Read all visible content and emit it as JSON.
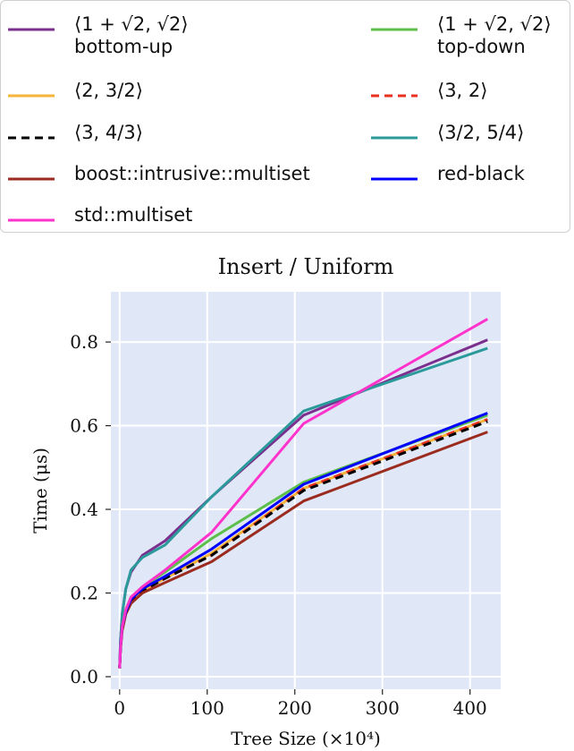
{
  "legend": {
    "items": [
      {
        "label": "⟨1 + √2, √2⟩",
        "sub": "bottom-up",
        "color": "#7b2f8e",
        "dash": "solid"
      },
      {
        "label": "⟨1 + √2, √2⟩",
        "sub": "top-down",
        "color": "#5cbf4a",
        "dash": "solid"
      },
      {
        "label": "⟨2, 3/2⟩",
        "sub": "",
        "color": "#f6b53a",
        "dash": "solid"
      },
      {
        "label": "⟨3, 2⟩",
        "sub": "",
        "color": "#e8321f",
        "dash": "dashed"
      },
      {
        "label": "⟨3, 4/3⟩",
        "sub": "",
        "color": "#000000",
        "dash": "dashed"
      },
      {
        "label": "⟨3/2, 5/4⟩",
        "sub": "",
        "color": "#2b9a9a",
        "dash": "solid"
      },
      {
        "label": "boost::intrusive::multiset",
        "sub": "",
        "color": "#9b2b1e",
        "dash": "solid"
      },
      {
        "label": "red-black",
        "sub": "",
        "color": "#0000ff",
        "dash": "solid"
      },
      {
        "label": "std::multiset",
        "sub": "",
        "color": "#ff33cc",
        "dash": "solid"
      }
    ]
  },
  "chart_data": {
    "type": "line",
    "title": "Insert / Uniform",
    "xlabel": "Tree Size (×10⁴)",
    "ylabel": "Time (μs)",
    "xlim": [
      -10,
      435
    ],
    "ylim": [
      -0.03,
      0.92
    ],
    "xticks": [
      0,
      100,
      200,
      300,
      400
    ],
    "yticks": [
      0.0,
      0.2,
      0.4,
      0.6,
      0.8
    ],
    "xtick_labels": [
      "0",
      "100",
      "200",
      "300",
      "400"
    ],
    "ytick_labels": [
      "0.0",
      "0.2",
      "0.4",
      "0.6",
      "0.8"
    ],
    "grid": true,
    "background": "#e0e8f8",
    "x": [
      0,
      1,
      3,
      7,
      13,
      26,
      52,
      105,
      210,
      420
    ],
    "series": [
      {
        "name": "⟨1 + √2, √2⟩ bottom-up",
        "color": "#7b2f8e",
        "dash": "solid",
        "values": [
          0.02,
          0.09,
          0.15,
          0.21,
          0.25,
          0.29,
          0.325,
          0.43,
          0.625,
          0.805
        ]
      },
      {
        "name": "⟨1 + √2, √2⟩ top-down",
        "color": "#5cbf4a",
        "dash": "solid",
        "values": [
          0.02,
          0.07,
          0.12,
          0.16,
          0.19,
          0.215,
          0.25,
          0.33,
          0.465,
          0.625
        ]
      },
      {
        "name": "⟨2, 3/2⟩",
        "color": "#f6b53a",
        "dash": "solid",
        "values": [
          0.02,
          0.07,
          0.12,
          0.155,
          0.185,
          0.205,
          0.235,
          0.295,
          0.45,
          0.615
        ]
      },
      {
        "name": "⟨3, 2⟩",
        "color": "#e8321f",
        "dash": "dashed",
        "values": [
          0.02,
          0.07,
          0.12,
          0.155,
          0.185,
          0.205,
          0.235,
          0.29,
          0.45,
          0.615
        ]
      },
      {
        "name": "⟨3, 4/3⟩",
        "color": "#000000",
        "dash": "dashed",
        "values": [
          0.02,
          0.07,
          0.12,
          0.155,
          0.18,
          0.205,
          0.235,
          0.29,
          0.445,
          0.61
        ]
      },
      {
        "name": "⟨3/2, 5/4⟩",
        "color": "#2b9a9a",
        "dash": "solid",
        "values": [
          0.02,
          0.09,
          0.15,
          0.21,
          0.255,
          0.285,
          0.315,
          0.43,
          0.635,
          0.785
        ]
      },
      {
        "name": "boost::intrusive::multiset",
        "color": "#9b2b1e",
        "dash": "solid",
        "values": [
          0.02,
          0.065,
          0.11,
          0.15,
          0.175,
          0.2,
          0.225,
          0.275,
          0.42,
          0.585
        ]
      },
      {
        "name": "red-black",
        "color": "#0000ff",
        "dash": "solid",
        "values": [
          0.02,
          0.07,
          0.12,
          0.155,
          0.185,
          0.21,
          0.24,
          0.305,
          0.46,
          0.63
        ]
      },
      {
        "name": "std::multiset",
        "color": "#ff33cc",
        "dash": "solid",
        "values": [
          0.02,
          0.07,
          0.12,
          0.16,
          0.19,
          0.215,
          0.255,
          0.345,
          0.605,
          0.855
        ]
      }
    ]
  }
}
